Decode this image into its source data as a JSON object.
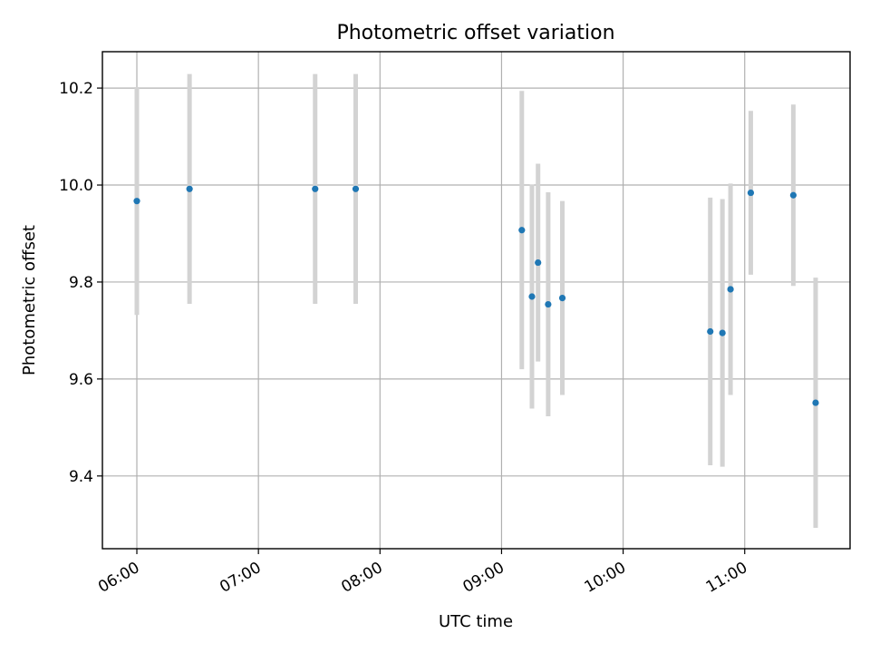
{
  "chart_data": {
    "type": "scatter",
    "title": "Photometric offset variation",
    "xlabel": "UTC time",
    "ylabel": "Photometric offset",
    "x_tick_labels": [
      "06:00",
      "07:00",
      "08:00",
      "09:00",
      "10:00",
      "11:00"
    ],
    "x_ticks": [
      "06:00",
      "07:00",
      "08:00",
      "09:00",
      "10:00",
      "11:00"
    ],
    "y_tick_labels": [
      "9.4",
      "9.6",
      "9.8",
      "10.0",
      "10.2"
    ],
    "y_ticks": [
      9.4,
      9.6,
      9.8,
      10.0,
      10.2
    ],
    "xlim": [
      "05:43",
      "11:52"
    ],
    "ylim": [
      9.25,
      10.275
    ],
    "grid": true,
    "series": [
      {
        "point_color": "#1f77b4",
        "errorbar_color": "#d3d3d3",
        "points": [
          {
            "x": "06:00",
            "y": 9.967,
            "err": 0.235
          },
          {
            "x": "06:26",
            "y": 9.992,
            "err": 0.237
          },
          {
            "x": "07:28",
            "y": 9.992,
            "err": 0.237
          },
          {
            "x": "07:48",
            "y": 9.992,
            "err": 0.237
          },
          {
            "x": "09:10",
            "y": 9.907,
            "err": 0.287
          },
          {
            "x": "09:15",
            "y": 9.77,
            "err": 0.231
          },
          {
            "x": "09:18",
            "y": 9.84,
            "err": 0.204
          },
          {
            "x": "09:23",
            "y": 9.754,
            "err": 0.231
          },
          {
            "x": "09:30",
            "y": 9.767,
            "err": 0.2
          },
          {
            "x": "10:43",
            "y": 9.698,
            "err": 0.276
          },
          {
            "x": "10:49",
            "y": 9.695,
            "err": 0.276
          },
          {
            "x": "10:53",
            "y": 9.785,
            "err": 0.218
          },
          {
            "x": "11:03",
            "y": 9.984,
            "err": 0.169
          },
          {
            "x": "11:24",
            "y": 9.979,
            "err": 0.187
          },
          {
            "x": "11:35",
            "y": 9.551,
            "err": 0.258
          }
        ]
      }
    ]
  }
}
